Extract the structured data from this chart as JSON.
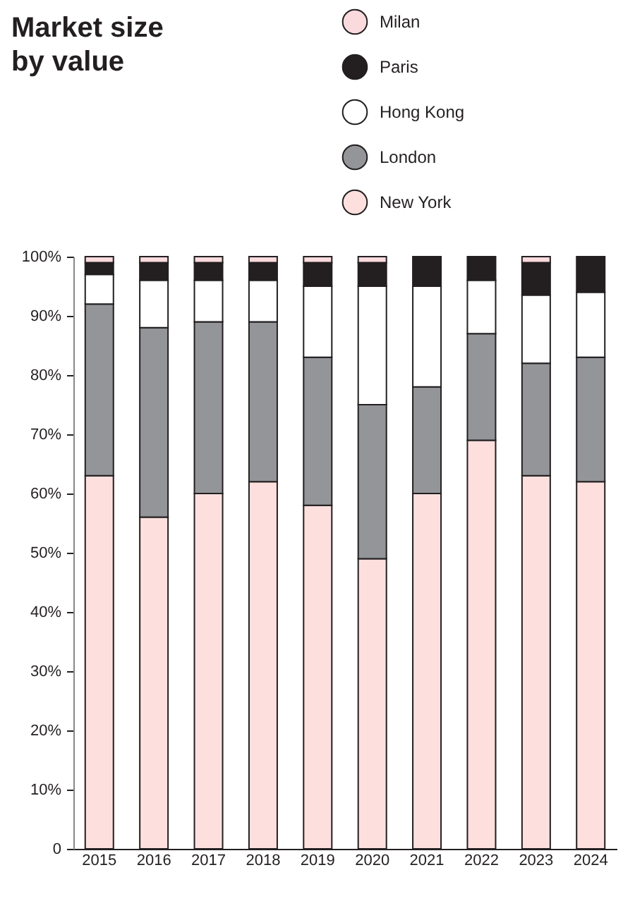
{
  "chart_data": {
    "type": "bar",
    "title": "Market size by value",
    "stacked": true,
    "legend": "top right",
    "categories": [
      "2015",
      "2016",
      "2017",
      "2018",
      "2019",
      "2020",
      "2021",
      "2022",
      "2023",
      "2024"
    ],
    "series": [
      {
        "name": "New York",
        "color": "#fde0de",
        "values": [
          63,
          56,
          60,
          62,
          58,
          49,
          60,
          69,
          63,
          62
        ]
      },
      {
        "name": "London",
        "color": "#939598",
        "values": [
          29,
          32,
          29,
          27,
          25,
          26,
          18,
          18,
          19,
          21
        ]
      },
      {
        "name": "Hong Kong",
        "color": "#ffffff",
        "values": [
          5,
          8,
          7,
          7,
          12,
          20,
          17,
          9,
          11.5,
          11
        ]
      },
      {
        "name": "Paris",
        "color": "#231f20",
        "values": [
          2,
          3,
          3,
          3,
          4,
          4,
          5,
          4,
          5.5,
          6
        ]
      },
      {
        "name": "Milan",
        "color": "#fadadd",
        "values": [
          1,
          1,
          1,
          1,
          1,
          1,
          0,
          0,
          1,
          0
        ]
      }
    ],
    "ylim": [
      0,
      100
    ],
    "yticks": [
      0,
      {
        "value": 10,
        "label": "10%"
      },
      {
        "value": 20,
        "label": "20%"
      },
      {
        "value": 30,
        "label": "30%"
      },
      {
        "value": 40,
        "label": "40%"
      },
      {
        "value": 50,
        "label": "50%"
      },
      {
        "value": 60,
        "label": "60%"
      },
      {
        "value": 70,
        "label": "70%"
      },
      {
        "value": 80,
        "label": "80%"
      },
      {
        "value": 90,
        "label": "90%"
      },
      {
        "value": 100,
        "label": "100%"
      }
    ],
    "grid": false
  }
}
